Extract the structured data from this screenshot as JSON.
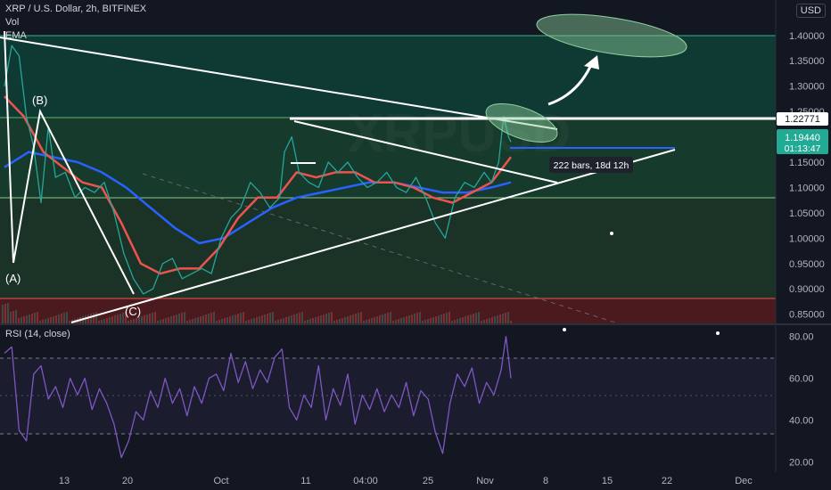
{
  "legend": {
    "symbol": "XRP / U.S. Dollar, 2h, BITFINEX",
    "vol": "Vol",
    "ema": "EMA"
  },
  "currency": "USD",
  "rsi_label": "RSI (14, close)",
  "measure_label": "222 bars, 18d 12h",
  "wave_labels": [
    "(A)",
    "(B)",
    "(C)"
  ],
  "price_badges": [
    {
      "value": "1.22771",
      "bg": "#ffffff",
      "fg": "#131722"
    },
    {
      "value": "1.19440",
      "sub": "01:13:47",
      "bg": "#22ab94",
      "fg": "#ffffff"
    }
  ],
  "colors": {
    "rsi_line": "#7e57c2",
    "ema_line": "#2962ff",
    "ma_line": "#ef5350",
    "up": "#26a69a",
    "down": "#ef5350",
    "upper_zone": "#0f3a34",
    "lower_zone": "#1a3a2a",
    "red_zone": "#5c1a1a"
  },
  "chart_data": [
    {
      "type": "line",
      "title": "XRP / U.S. Dollar, 2h, BITFINEX",
      "y_ticks": [
        "1.40000",
        "1.35000",
        "1.30000",
        "1.25000",
        "1.20000",
        "1.15000",
        "1.10000",
        "1.05000",
        "1.00000",
        "0.95000",
        "0.90000",
        "0.85000"
      ],
      "x_ticks": [
        "13",
        "20",
        "Oct",
        "11",
        "04:00",
        "25",
        "Nov",
        "8",
        "15",
        "22",
        "Dec"
      ],
      "ylim": [
        0.83,
        1.47
      ],
      "series": [
        {
          "values": [
            [
              0,
              1.3
            ],
            [
              3,
              1.38
            ],
            [
              6,
              1.36
            ],
            [
              9,
              1.24
            ],
            [
              12,
              1.18
            ],
            [
              15,
              1.07
            ],
            [
              18,
              1.22
            ],
            [
              21,
              1.12
            ],
            [
              25,
              1.13
            ],
            [
              29,
              1.08
            ],
            [
              33,
              1.1
            ],
            [
              37,
              1.09
            ],
            [
              41,
              1.11
            ],
            [
              45,
              1.05
            ],
            [
              49,
              0.97
            ],
            [
              53,
              0.92
            ],
            [
              57,
              0.89
            ],
            [
              61,
              0.9
            ],
            [
              65,
              0.95
            ],
            [
              69,
              0.96
            ],
            [
              73,
              0.92
            ],
            [
              77,
              0.93
            ],
            [
              81,
              0.94
            ],
            [
              85,
              0.93
            ],
            [
              89,
              1.0
            ],
            [
              93,
              1.04
            ],
            [
              97,
              1.06
            ],
            [
              101,
              1.11
            ],
            [
              105,
              1.09
            ],
            [
              109,
              1.06
            ],
            [
              113,
              1.08
            ],
            [
              115,
              1.17
            ],
            [
              118,
              1.2
            ],
            [
              121,
              1.13
            ],
            [
              125,
              1.11
            ],
            [
              129,
              1.1
            ],
            [
              133,
              1.15
            ],
            [
              137,
              1.13
            ],
            [
              141,
              1.15
            ],
            [
              145,
              1.12
            ],
            [
              149,
              1.1
            ],
            [
              153,
              1.11
            ],
            [
              157,
              1.13
            ],
            [
              161,
              1.1
            ],
            [
              165,
              1.09
            ],
            [
              169,
              1.12
            ],
            [
              173,
              1.08
            ],
            [
              177,
              1.03
            ],
            [
              181,
              1.0
            ],
            [
              185,
              1.08
            ],
            [
              189,
              1.11
            ],
            [
              193,
              1.1
            ],
            [
              197,
              1.13
            ],
            [
              200,
              1.11
            ],
            [
              203,
              1.15
            ],
            [
              205,
              1.24
            ],
            [
              207,
              1.2
            ],
            [
              208,
              1.19
            ]
          ]
        },
        {
          "values": [
            [
              0,
              1.28
            ],
            [
              8,
              1.24
            ],
            [
              16,
              1.17
            ],
            [
              24,
              1.14
            ],
            [
              32,
              1.11
            ],
            [
              40,
              1.1
            ],
            [
              48,
              1.03
            ],
            [
              56,
              0.95
            ],
            [
              64,
              0.93
            ],
            [
              72,
              0.94
            ],
            [
              80,
              0.94
            ],
            [
              88,
              0.98
            ],
            [
              96,
              1.04
            ],
            [
              104,
              1.08
            ],
            [
              112,
              1.08
            ],
            [
              120,
              1.13
            ],
            [
              128,
              1.12
            ],
            [
              136,
              1.13
            ],
            [
              144,
              1.13
            ],
            [
              152,
              1.11
            ],
            [
              160,
              1.11
            ],
            [
              168,
              1.1
            ],
            [
              176,
              1.08
            ],
            [
              184,
              1.07
            ],
            [
              192,
              1.09
            ],
            [
              200,
              1.11
            ],
            [
              208,
              1.16
            ]
          ]
        },
        {
          "values": [
            [
              0,
              1.14
            ],
            [
              10,
              1.17
            ],
            [
              20,
              1.16
            ],
            [
              30,
              1.15
            ],
            [
              40,
              1.13
            ],
            [
              50,
              1.1
            ],
            [
              60,
              1.06
            ],
            [
              70,
              1.02
            ],
            [
              80,
              0.99
            ],
            [
              90,
              1.0
            ],
            [
              100,
              1.03
            ],
            [
              110,
              1.06
            ],
            [
              120,
              1.08
            ],
            [
              130,
              1.09
            ],
            [
              140,
              1.1
            ],
            [
              150,
              1.11
            ],
            [
              160,
              1.11
            ],
            [
              170,
              1.1
            ],
            [
              180,
              1.09
            ],
            [
              190,
              1.09
            ],
            [
              200,
              1.1
            ],
            [
              208,
              1.11
            ]
          ]
        }
      ]
    },
    {
      "type": "line",
      "title": "RSI (14, close)",
      "y_ticks": [
        "80.00",
        "60.00",
        "40.00",
        "20.00"
      ],
      "ylim": [
        15,
        85
      ],
      "series": [
        {
          "values": [
            [
              0,
              72
            ],
            [
              3,
              75
            ],
            [
              6,
              35
            ],
            [
              9,
              30
            ],
            [
              12,
              62
            ],
            [
              15,
              66
            ],
            [
              18,
              50
            ],
            [
              21,
              56
            ],
            [
              24,
              46
            ],
            [
              27,
              60
            ],
            [
              30,
              52
            ],
            [
              33,
              60
            ],
            [
              36,
              45
            ],
            [
              39,
              55
            ],
            [
              42,
              48
            ],
            [
              45,
              38
            ],
            [
              48,
              22
            ],
            [
              51,
              30
            ],
            [
              54,
              44
            ],
            [
              57,
              40
            ],
            [
              60,
              54
            ],
            [
              63,
              46
            ],
            [
              66,
              60
            ],
            [
              69,
              48
            ],
            [
              72,
              55
            ],
            [
              75,
              42
            ],
            [
              78,
              56
            ],
            [
              81,
              48
            ],
            [
              84,
              60
            ],
            [
              87,
              62
            ],
            [
              90,
              54
            ],
            [
              93,
              72
            ],
            [
              96,
              58
            ],
            [
              99,
              68
            ],
            [
              102,
              55
            ],
            [
              105,
              64
            ],
            [
              108,
              58
            ],
            [
              111,
              70
            ],
            [
              114,
              74
            ],
            [
              117,
              46
            ],
            [
              120,
              40
            ],
            [
              123,
              52
            ],
            [
              126,
              46
            ],
            [
              129,
              66
            ],
            [
              132,
              40
            ],
            [
              135,
              55
            ],
            [
              138,
              47
            ],
            [
              141,
              62
            ],
            [
              144,
              38
            ],
            [
              147,
              52
            ],
            [
              150,
              45
            ],
            [
              153,
              55
            ],
            [
              156,
              44
            ],
            [
              159,
              52
            ],
            [
              162,
              46
            ],
            [
              165,
              58
            ],
            [
              168,
              42
            ],
            [
              171,
              54
            ],
            [
              174,
              50
            ],
            [
              177,
              34
            ],
            [
              180,
              24
            ],
            [
              183,
              48
            ],
            [
              186,
              62
            ],
            [
              189,
              56
            ],
            [
              192,
              65
            ],
            [
              195,
              48
            ],
            [
              198,
              58
            ],
            [
              201,
              52
            ],
            [
              204,
              64
            ],
            [
              206,
              80
            ],
            [
              208,
              60
            ]
          ]
        }
      ]
    }
  ]
}
